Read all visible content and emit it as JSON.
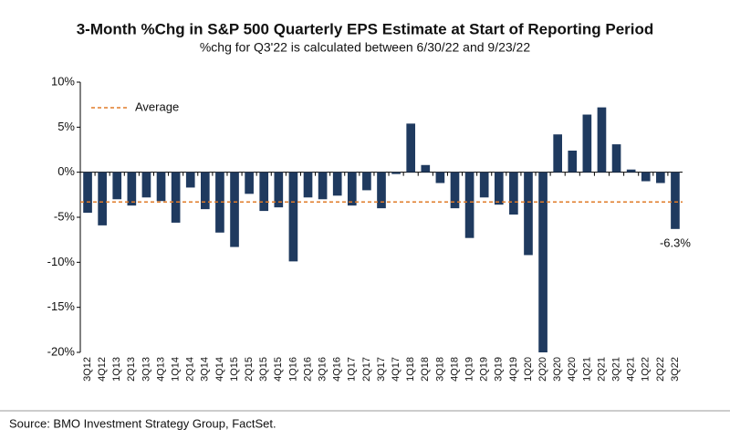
{
  "chart_data": {
    "type": "bar",
    "title": "3-Month %Chg in S&P 500 Quarterly EPS Estimate at Start of Reporting Period",
    "subtitle": "%chg for Q3'22 is calculated between 6/30/22 and 9/23/22",
    "source": "Source: BMO Investment Strategy Group, FactSet.",
    "categories": [
      "3Q12",
      "4Q12",
      "1Q13",
      "2Q13",
      "3Q13",
      "4Q13",
      "1Q14",
      "2Q14",
      "3Q14",
      "4Q14",
      "1Q15",
      "2Q15",
      "3Q15",
      "4Q15",
      "1Q16",
      "2Q16",
      "3Q16",
      "4Q16",
      "1Q17",
      "2Q17",
      "3Q17",
      "4Q17",
      "1Q18",
      "2Q18",
      "3Q18",
      "4Q18",
      "1Q19",
      "2Q19",
      "3Q19",
      "4Q19",
      "1Q20",
      "2Q20",
      "3Q20",
      "4Q20",
      "1Q21",
      "2Q21",
      "3Q21",
      "4Q21",
      "1Q22",
      "2Q22",
      "3Q22"
    ],
    "values": [
      -4.5,
      -5.9,
      -3.0,
      -3.7,
      -2.8,
      -3.2,
      -5.6,
      -1.7,
      -4.1,
      -6.7,
      -8.3,
      -2.4,
      -4.3,
      -3.9,
      -9.9,
      -2.8,
      -3.0,
      -2.6,
      -3.7,
      -2.0,
      -4.0,
      -0.2,
      5.4,
      0.8,
      -1.2,
      -4.0,
      -7.3,
      -2.8,
      -3.6,
      -4.7,
      -9.2,
      -20.0,
      4.2,
      2.4,
      6.4,
      7.2,
      3.1,
      0.3,
      -1.0,
      -1.2,
      -6.3
    ],
    "value_labels": [
      null,
      null,
      null,
      null,
      null,
      null,
      null,
      null,
      null,
      null,
      null,
      null,
      null,
      null,
      null,
      null,
      null,
      null,
      null,
      null,
      null,
      null,
      null,
      null,
      null,
      null,
      null,
      null,
      null,
      null,
      null,
      null,
      null,
      null,
      null,
      null,
      null,
      null,
      null,
      null,
      "-6.3%"
    ],
    "color": "#1f3a5f",
    "reference_line": {
      "name": "Average",
      "value": -3.3,
      "color": "#e07b28"
    },
    "ylim": [
      -20,
      10
    ],
    "yticks": [
      {
        "value": -20,
        "label": "-20%"
      },
      {
        "value": -15,
        "label": "-15%"
      },
      {
        "value": -10,
        "label": "-10%"
      },
      {
        "value": -5,
        "label": "-5%"
      },
      {
        "value": 0,
        "label": "0%"
      },
      {
        "value": 5,
        "label": "5%"
      },
      {
        "value": 10,
        "label": "10%"
      }
    ],
    "grid": false,
    "legend": "upper left"
  }
}
